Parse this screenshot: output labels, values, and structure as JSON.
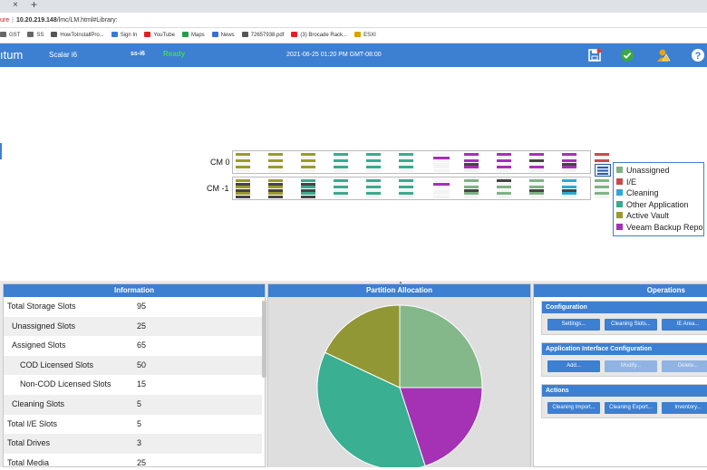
{
  "browser": {
    "tab_close": "×",
    "tab_new": "+",
    "address": {
      "warning": "ure",
      "separator": "|",
      "host": "10.20.219.148",
      "path": "/lmc/LM.html#Library:"
    },
    "bookmarks": [
      {
        "label": "GST",
        "icon": "folder-icon",
        "color": "#666666"
      },
      {
        "label": "SS",
        "icon": "folder-icon",
        "color": "#666666"
      },
      {
        "label": "HowToInstallPro...",
        "icon": "globe-icon",
        "color": "#555555"
      },
      {
        "label": "Sign In",
        "icon": "link-icon",
        "color": "#3a7bd5"
      },
      {
        "label": "YouTube",
        "icon": "youtube-icon",
        "color": "#e02020"
      },
      {
        "label": "Maps",
        "icon": "map-pin-icon",
        "color": "#2a9d4b"
      },
      {
        "label": "News",
        "icon": "news-icon",
        "color": "#3a6fd0"
      },
      {
        "label": "72657938.pdf",
        "icon": "globe-icon",
        "color": "#555555"
      },
      {
        "label": "(3) Brocade Rack...",
        "icon": "youtube-icon",
        "color": "#e02020"
      },
      {
        "label": "ESXI",
        "icon": "pencil-icon",
        "color": "#d9a300"
      }
    ]
  },
  "header": {
    "brand": "ıtum",
    "product": "Scalar i6",
    "library_name": "ss-i6",
    "status": "Ready",
    "datetime": "2021-06-25 01:20 PM GMT-08:00",
    "icons": [
      "save-icon",
      "checkmark-icon",
      "user-warning-icon",
      "help-icon"
    ]
  },
  "library": {
    "rows": [
      {
        "label": "CM 0",
        "magazines": [
          {
            "color": "#9a9a2c",
            "bars": [
              "c",
              "w",
              "c",
              "w",
              "c",
              "w"
            ]
          },
          {
            "color": "#9a9a2c",
            "bars": [
              "c",
              "w",
              "c",
              "w",
              "c",
              "w"
            ]
          },
          {
            "color": "#9a9a2c",
            "bars": [
              "c",
              "w",
              "c",
              "w",
              "c",
              "w"
            ]
          },
          {
            "color": "#3aaa8e",
            "bars": [
              "c",
              "w",
              "c",
              "w",
              "c",
              "w"
            ]
          },
          {
            "color": "#3aaa8e",
            "bars": [
              "c",
              "w",
              "c",
              "w",
              "c",
              "w"
            ]
          },
          {
            "color": "#3aaa8e",
            "bars": [
              "c",
              "w",
              "c",
              "w",
              "c",
              "w"
            ]
          },
          {
            "color": "#a531b5",
            "bars": [
              "w",
              "c",
              "w",
              "w",
              "w",
              "w"
            ]
          },
          {
            "color": "#a531b5",
            "bars": [
              "c",
              "w",
              "c",
              "d",
              "c",
              "w"
            ]
          },
          {
            "color": "#a531b5",
            "bars": [
              "c",
              "w",
              "c",
              "w",
              "c",
              "w"
            ]
          },
          {
            "color": "#a531b5",
            "bars": [
              "c",
              "w",
              "d",
              "w",
              "c",
              "w"
            ]
          },
          {
            "color": "#a531b5",
            "bars": [
              "c",
              "w",
              "c",
              "d",
              "c",
              "w"
            ]
          },
          {
            "color": "#c94a4a",
            "bars": [
              "c",
              "w",
              "c",
              "w",
              "c",
              "w"
            ]
          }
        ]
      },
      {
        "label": "CM -1",
        "magazines": [
          {
            "color": "#9a9a2c",
            "bars": [
              "c",
              "d",
              "c",
              "d",
              "c",
              "d"
            ]
          },
          {
            "color": "#9a9a2c",
            "bars": [
              "c",
              "d",
              "c",
              "d",
              "c",
              "d"
            ]
          },
          {
            "color": "#3aaa8e",
            "bars": [
              "c",
              "d",
              "c",
              "d",
              "c",
              "d"
            ]
          },
          {
            "color": "#3aaa8e",
            "bars": [
              "c",
              "w",
              "c",
              "w",
              "c",
              "w"
            ]
          },
          {
            "color": "#3aaa8e",
            "bars": [
              "c",
              "w",
              "c",
              "w",
              "c",
              "w"
            ]
          },
          {
            "color": "#3aaa8e",
            "bars": [
              "c",
              "w",
              "c",
              "w",
              "c",
              "w"
            ]
          },
          {
            "color": "#a531b5",
            "bars": [
              "w",
              "c",
              "w",
              "w",
              "w",
              "w"
            ]
          },
          {
            "color": "#7fb285",
            "bars": [
              "c",
              "w",
              "c",
              "d",
              "c",
              "w"
            ]
          },
          {
            "color": "#7fb285",
            "bars": [
              "d",
              "w",
              "c",
              "w",
              "c",
              "w"
            ]
          },
          {
            "color": "#7fb285",
            "bars": [
              "c",
              "w",
              "c",
              "d",
              "c",
              "w"
            ]
          },
          {
            "color": "#2aa9d6",
            "bars": [
              "c",
              "w",
              "c",
              "d",
              "c",
              "w"
            ]
          },
          {
            "color": "#7fb285",
            "bars": [
              "c",
              "w",
              "c",
              "w",
              "c",
              "w"
            ]
          }
        ]
      }
    ],
    "legend": [
      {
        "label": "Unassigned",
        "color": "#7fb285"
      },
      {
        "label": "I/E",
        "color": "#c94a4a"
      },
      {
        "label": "Cleaning",
        "color": "#2aa9d6"
      },
      {
        "label": "Other Application",
        "color": "#3aaa8e"
      },
      {
        "label": "Active Vault",
        "color": "#9a9a2c"
      },
      {
        "label": "Veeam Backup Repo",
        "color": "#a531b5"
      }
    ]
  },
  "information": {
    "title": "Information",
    "rows": [
      {
        "label": "Total Storage Slots",
        "value": "95",
        "indent": 0
      },
      {
        "label": "Unassigned Slots",
        "value": "25",
        "indent": 1
      },
      {
        "label": "Assigned Slots",
        "value": "65",
        "indent": 1
      },
      {
        "label": "COD Licensed Slots",
        "value": "50",
        "indent": 2
      },
      {
        "label": "Non-COD Licensed Slots",
        "value": "15",
        "indent": 2
      },
      {
        "label": "Cleaning Slots",
        "value": "5",
        "indent": 1
      },
      {
        "label": "Total I/E Slots",
        "value": "5",
        "indent": 0
      },
      {
        "label": "Total Drives",
        "value": "3",
        "indent": 0
      },
      {
        "label": "Total Media",
        "value": "25",
        "indent": 0
      }
    ]
  },
  "partition": {
    "title": "Partition Allocation",
    "slices": [
      {
        "name": "Unassigned",
        "fraction": 0.25,
        "color": "#84b789"
      },
      {
        "name": "Veeam Backup Repo",
        "fraction": 0.2,
        "color": "#a531b5"
      },
      {
        "name": "Other Application",
        "fraction": 0.37,
        "color": "#3aaf92"
      },
      {
        "name": "Active Vault",
        "fraction": 0.18,
        "color": "#929735"
      }
    ]
  },
  "operations": {
    "title": "Operations",
    "sections": [
      {
        "title": "Configuration",
        "buttons": [
          {
            "label": "Settings...",
            "enabled": true
          },
          {
            "label": "Cleaning Slots...",
            "enabled": true
          },
          {
            "label": "IE Area...",
            "enabled": true
          }
        ]
      },
      {
        "title": "Application Interface Configuration",
        "buttons": [
          {
            "label": "Add...",
            "enabled": true
          },
          {
            "label": "Modify...",
            "enabled": false
          },
          {
            "label": "Delete...",
            "enabled": false
          }
        ]
      },
      {
        "title": "Actions",
        "buttons": [
          {
            "label": "Cleaning Import...",
            "enabled": true
          },
          {
            "label": "Cleaning Export...",
            "enabled": true
          },
          {
            "label": "Inventory...",
            "enabled": true
          }
        ]
      }
    ]
  }
}
